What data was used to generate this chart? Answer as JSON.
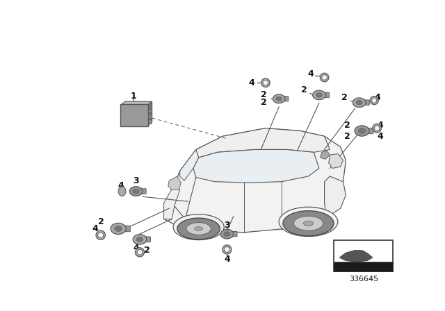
{
  "bg_color": "#ffffff",
  "ref_number": "336645",
  "car_edge_color": "#555555",
  "car_body_color": "#f5f5f5",
  "sensor_color": "#aaaaaa",
  "sensor_dark": "#888888",
  "label_fontsize": 8,
  "ecu_color": "#999999"
}
